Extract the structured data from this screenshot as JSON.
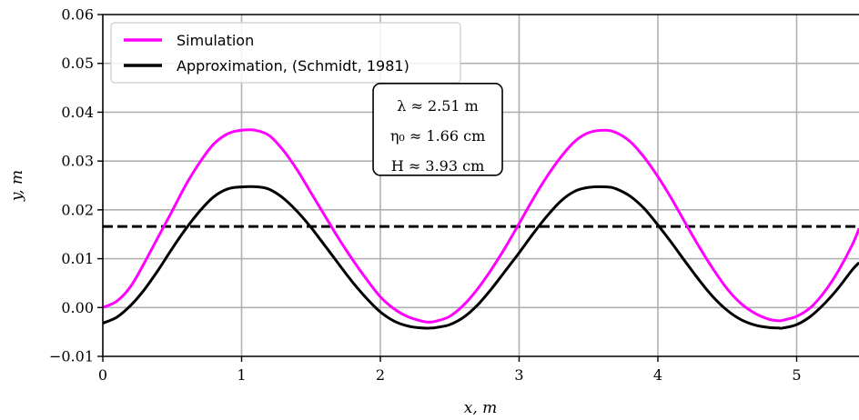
{
  "chart_data": {
    "type": "line",
    "title": "",
    "xlabel": "x, m",
    "ylabel": "y, m",
    "xlim": [
      0,
      5.45
    ],
    "ylim": [
      -0.01,
      0.06
    ],
    "x_ticks": [
      "0",
      "1",
      "2",
      "3",
      "4",
      "5"
    ],
    "y_ticks": [
      "−0.01",
      "0.00",
      "0.01",
      "0.02",
      "0.03",
      "0.04",
      "0.05",
      "0.06"
    ],
    "grid": true,
    "legend_position": "top-left",
    "series": [
      {
        "name": "Simulation",
        "color": "#ff00ff",
        "style": "solid",
        "x": [
          0.0,
          0.1,
          0.2,
          0.3,
          0.4,
          0.5,
          0.6,
          0.7,
          0.8,
          0.9,
          1.0,
          1.1,
          1.2,
          1.3,
          1.4,
          1.5,
          1.6,
          1.7,
          1.8,
          1.9,
          2.0,
          2.1,
          2.2,
          2.3,
          2.35,
          2.4,
          2.5,
          2.6,
          2.7,
          2.8,
          2.9,
          3.0,
          3.1,
          3.2,
          3.3,
          3.4,
          3.5,
          3.62,
          3.7,
          3.8,
          3.9,
          4.0,
          4.1,
          4.2,
          4.3,
          4.4,
          4.5,
          4.6,
          4.7,
          4.8,
          4.87,
          4.9,
          5.0,
          5.1,
          5.2,
          5.3,
          5.4,
          5.45
        ],
        "y": [
          0.0,
          0.0013,
          0.0043,
          0.0092,
          0.0145,
          0.0198,
          0.0252,
          0.0298,
          0.0335,
          0.0356,
          0.0363,
          0.0363,
          0.0352,
          0.0322,
          0.0282,
          0.0235,
          0.0188,
          0.0141,
          0.0098,
          0.0058,
          0.0022,
          -0.0003,
          -0.0019,
          -0.0028,
          -0.003,
          -0.0028,
          -0.0018,
          0.0005,
          0.0038,
          0.0078,
          0.0123,
          0.0172,
          0.0222,
          0.0268,
          0.0308,
          0.034,
          0.0358,
          0.0363,
          0.0358,
          0.034,
          0.0308,
          0.0268,
          0.0222,
          0.0172,
          0.0123,
          0.0078,
          0.0038,
          0.0008,
          -0.0012,
          -0.0024,
          -0.0027,
          -0.0026,
          -0.0018,
          0.0,
          0.0032,
          0.0075,
          0.0128,
          0.0162
        ]
      },
      {
        "name": "Approximation, (Schmidt, 1981)",
        "color": "#000000",
        "style": "solid",
        "x": [
          0.0,
          0.1,
          0.2,
          0.3,
          0.4,
          0.5,
          0.6,
          0.7,
          0.8,
          0.9,
          1.0,
          1.12,
          1.2,
          1.3,
          1.4,
          1.5,
          1.6,
          1.7,
          1.8,
          1.9,
          2.0,
          2.1,
          2.2,
          2.3,
          2.37,
          2.4,
          2.5,
          2.6,
          2.7,
          2.8,
          2.9,
          3.0,
          3.1,
          3.2,
          3.3,
          3.4,
          3.5,
          3.63,
          3.7,
          3.8,
          3.9,
          4.0,
          4.1,
          4.2,
          4.3,
          4.4,
          4.5,
          4.6,
          4.7,
          4.8,
          4.87,
          4.9,
          5.0,
          5.1,
          5.2,
          5.3,
          5.4,
          5.45
        ],
        "y": [
          -0.0032,
          -0.002,
          0.0004,
          0.0037,
          0.0077,
          0.0121,
          0.0162,
          0.0198,
          0.0227,
          0.0243,
          0.0247,
          0.0247,
          0.0242,
          0.0224,
          0.0197,
          0.0164,
          0.0127,
          0.0089,
          0.0052,
          0.0019,
          -0.0009,
          -0.0028,
          -0.0038,
          -0.0042,
          -0.0042,
          -0.0041,
          -0.0035,
          -0.002,
          0.0005,
          0.0038,
          0.0075,
          0.0112,
          0.0151,
          0.0187,
          0.0218,
          0.0238,
          0.0246,
          0.0247,
          0.0243,
          0.0228,
          0.0203,
          0.0169,
          0.0132,
          0.0093,
          0.0055,
          0.0021,
          -0.0006,
          -0.0025,
          -0.0036,
          -0.0041,
          -0.0042,
          -0.0042,
          -0.0035,
          -0.0018,
          0.0008,
          0.004,
          0.0077,
          0.0092
        ]
      },
      {
        "name": "",
        "color": "#000000",
        "style": "dashed",
        "x": [
          0.0,
          5.45
        ],
        "y": [
          0.0166,
          0.0166
        ]
      }
    ],
    "annotation": {
      "lines": [
        "λ ≈ 2.51 m",
        "η₀ ≈ 1.66 cm",
        "H ≈ 3.93 cm"
      ],
      "x": 2.42,
      "y": 0.0375
    }
  }
}
